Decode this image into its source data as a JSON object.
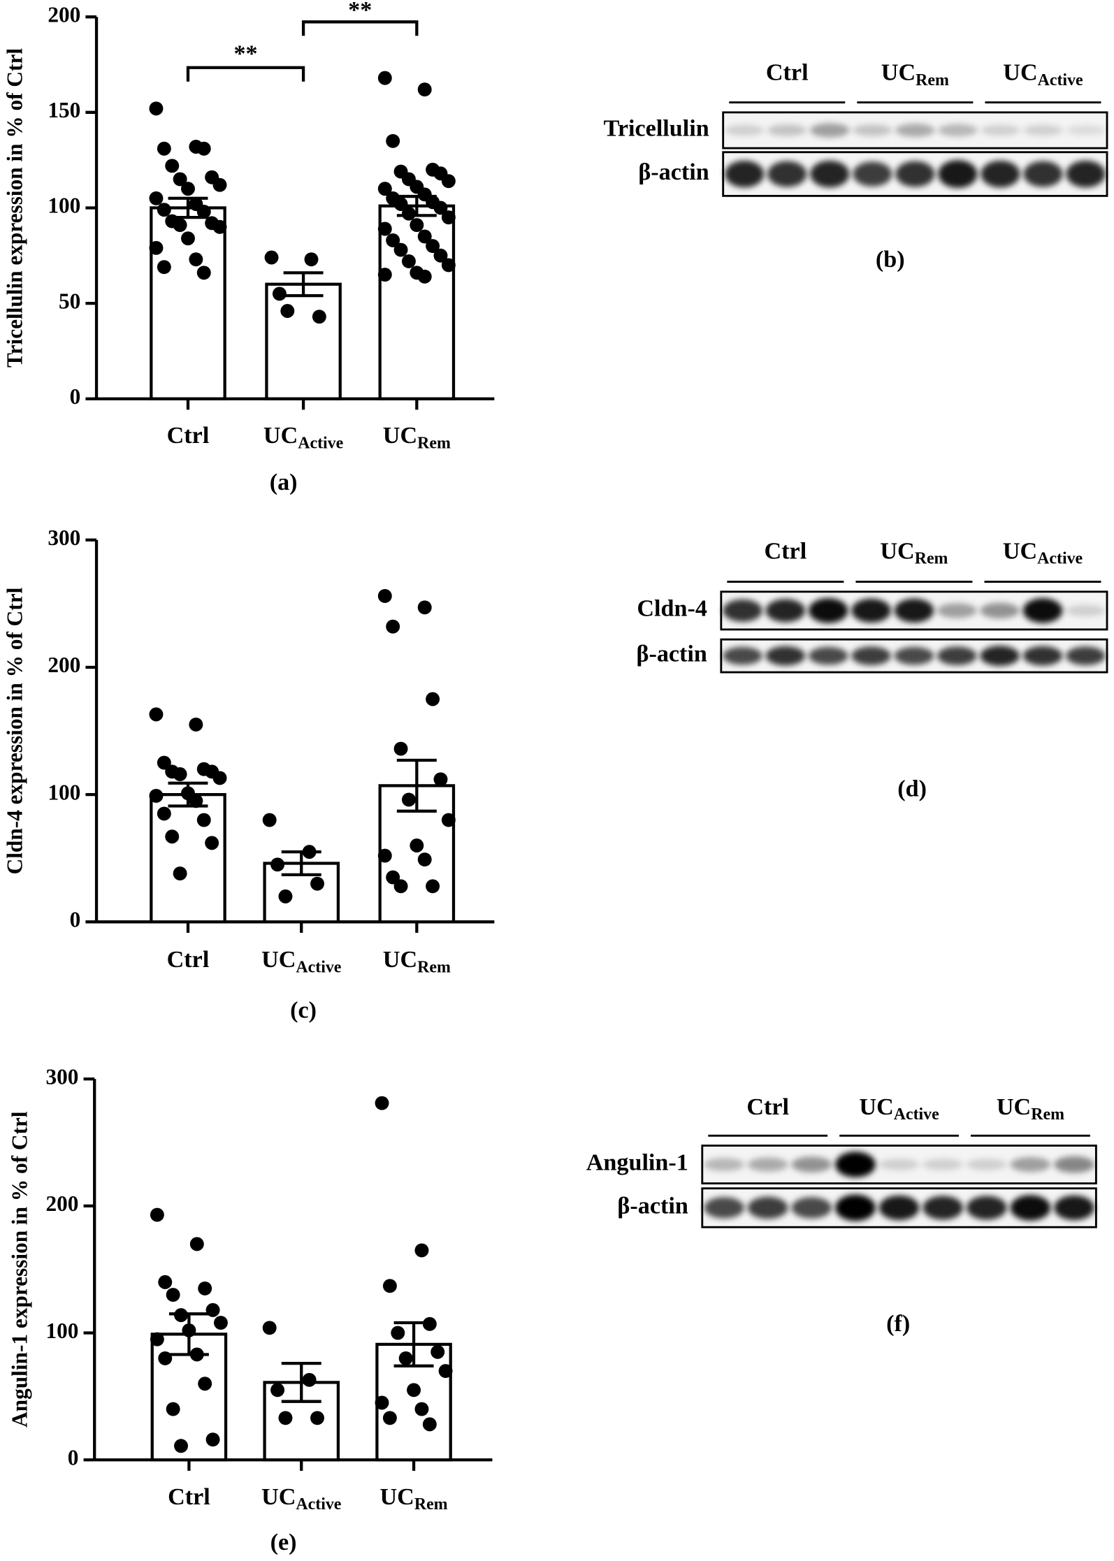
{
  "chart_data": [
    {
      "type": "bar",
      "y_label": "Tricellulin expression in  % of Ctrl",
      "categories": [
        [
          "Ctrl"
        ],
        [
          "UC",
          "Active"
        ],
        [
          "UC",
          "Rem"
        ]
      ],
      "values": [
        100,
        60,
        101
      ],
      "errors": [
        5,
        6,
        5
      ],
      "points": [
        [
          152,
          132,
          131,
          131,
          122,
          116,
          115,
          112,
          110,
          105,
          102,
          99,
          98,
          93,
          92,
          91,
          90,
          84,
          79,
          73,
          69,
          66
        ],
        [
          74,
          73,
          55,
          43,
          46
        ],
        [
          168,
          162,
          135,
          120,
          119,
          118,
          115,
          114,
          111,
          110,
          107,
          105,
          103,
          102,
          100,
          97,
          95,
          91,
          89,
          85,
          83,
          80,
          78,
          75,
          72,
          70,
          66,
          65,
          64
        ]
      ],
      "ylim": [
        0,
        200
      ],
      "yticks": [
        0,
        50,
        100,
        150,
        200
      ],
      "annotations": [
        "**",
        "**"
      ],
      "caption": "(a)"
    },
    {
      "type": "bar",
      "y_label": "Cldn-4 expression in  % of Ctrl",
      "categories": [
        [
          "Ctrl"
        ],
        [
          "UC",
          "Active"
        ],
        [
          "UC",
          "Rem"
        ]
      ],
      "values": [
        100,
        46,
        107
      ],
      "errors": [
        9,
        9,
        20
      ],
      "points": [
        [
          163,
          155,
          125,
          120,
          118,
          118,
          116,
          113,
          101,
          99,
          95,
          85,
          80,
          67,
          62,
          38
        ],
        [
          80,
          55,
          45,
          30,
          20
        ],
        [
          256,
          247,
          232,
          175,
          136,
          112,
          96,
          80,
          60,
          52,
          49,
          35,
          28,
          28
        ]
      ],
      "ylim": [
        0,
        300
      ],
      "yticks": [
        0,
        100,
        200,
        300
      ],
      "caption": "(c)"
    },
    {
      "type": "bar",
      "y_label": "Angulin-1 expression in  % of Ctrl",
      "categories": [
        [
          "Ctrl"
        ],
        [
          "UC",
          "Active"
        ],
        [
          "UC",
          "Rem"
        ]
      ],
      "values": [
        99,
        61,
        91
      ],
      "errors": [
        16,
        15,
        17
      ],
      "points": [
        [
          193,
          170,
          140,
          135,
          130,
          118,
          114,
          108,
          102,
          95,
          83,
          80,
          60,
          40,
          16,
          11
        ],
        [
          104,
          63,
          55,
          33,
          33
        ],
        [
          281,
          165,
          137,
          107,
          100,
          85,
          80,
          70,
          55,
          45,
          40,
          33,
          28
        ]
      ],
      "ylim": [
        0,
        300
      ],
      "yticks": [
        0,
        100,
        200,
        300
      ],
      "caption": "(e)"
    }
  ],
  "blots": [
    {
      "groups": [
        [
          "Ctrl"
        ],
        [
          "UC",
          "Rem"
        ],
        [
          "UC",
          "Active"
        ]
      ],
      "rows": [
        "Tricellulin",
        "β-actin"
      ],
      "caption": "(b)"
    },
    {
      "groups": [
        [
          "Ctrl"
        ],
        [
          "UC",
          "Rem"
        ],
        [
          "UC",
          "Active"
        ]
      ],
      "rows": [
        "Cldn-4",
        "β-actin"
      ],
      "caption": "(d)"
    },
    {
      "groups": [
        [
          "Ctrl"
        ],
        [
          "UC",
          "Active"
        ],
        [
          "UC",
          "Rem"
        ]
      ],
      "rows": [
        "Angulin-1",
        "β-actin"
      ],
      "caption": "(f)"
    }
  ]
}
